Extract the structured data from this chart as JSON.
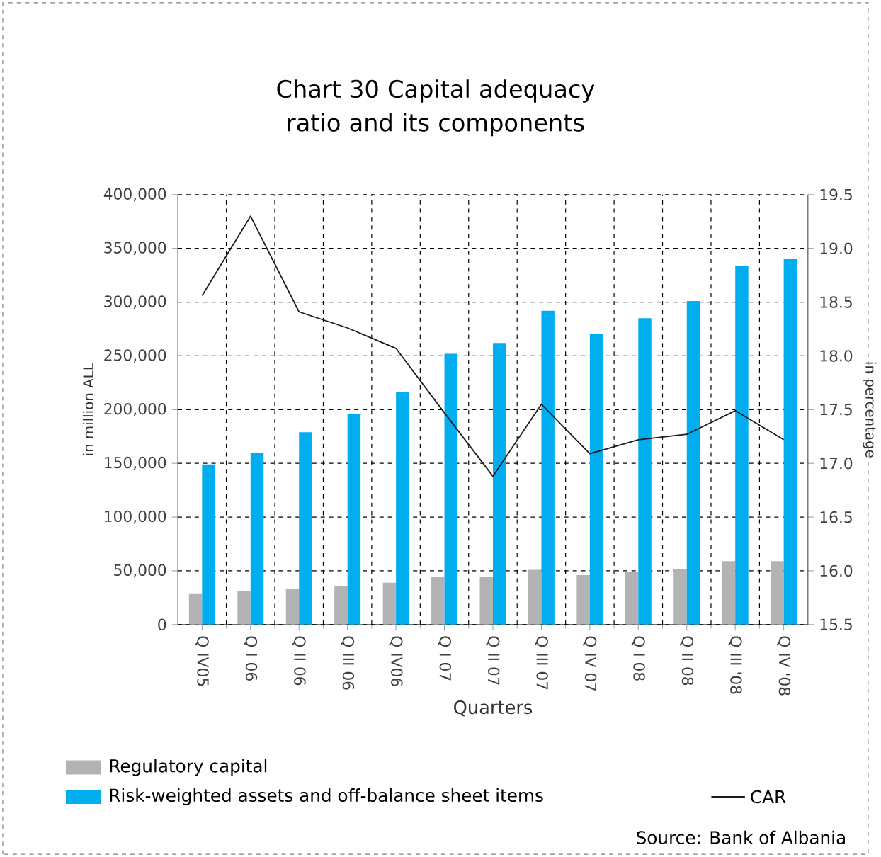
{
  "chart_data": {
    "type": "bar",
    "title": "Chart 30 Capital adequacy ratio and its components",
    "xlabel": "Quarters",
    "ylabel": "in million ALL",
    "y2label": "in percentage",
    "categories": [
      "Q IV05",
      "Q I 06",
      "Q II 06",
      "Q III 06",
      "Q IV06",
      "Q I 07",
      "Q II 07",
      "Q III 07",
      "Q IV 07",
      "Q I 08",
      "Q II 08",
      "Q III '08",
      "Q IV '08"
    ],
    "series": [
      {
        "name": "Regulatory capital",
        "color": "#b3b3b5",
        "values": [
          29000,
          31000,
          33000,
          36000,
          39000,
          44000,
          44000,
          51000,
          46000,
          49000,
          52000,
          59000,
          59000
        ]
      },
      {
        "name": "Risk-weighted assets and off-balance sheet items",
        "color": "#00aeef",
        "values": [
          149000,
          160000,
          179000,
          196000,
          216000,
          252000,
          262000,
          292000,
          270000,
          285000,
          301000,
          334000,
          340000
        ]
      },
      {
        "name": "CAR",
        "type": "line",
        "axis": "y2",
        "color": "#1a1a1a",
        "values": [
          18.56,
          19.3,
          18.41,
          18.26,
          18.07,
          17.47,
          16.88,
          17.55,
          17.09,
          17.22,
          17.27,
          17.49,
          17.22
        ]
      }
    ],
    "ylim": [
      0,
      400000
    ],
    "yticks": [
      {
        "value": 0,
        "label": "0"
      },
      {
        "value": 50000,
        "label": "50,000"
      },
      {
        "value": 100000,
        "label": "100,000"
      },
      {
        "value": 150000,
        "label": "150,000"
      },
      {
        "value": 200000,
        "label": "200,000"
      },
      {
        "value": 250000,
        "label": "250,000"
      },
      {
        "value": 300000,
        "label": "300,000"
      },
      {
        "value": 350000,
        "label": "350,000"
      },
      {
        "value": 400000,
        "label": "400,000"
      }
    ],
    "y2lim": [
      15.5,
      19.5
    ],
    "y2ticks": [
      {
        "value": 15.5,
        "label": "15.5"
      },
      {
        "value": 16,
        "label": "16.0"
      },
      {
        "value": 16.5,
        "label": "16.5"
      },
      {
        "value": 17,
        "label": "17.0"
      },
      {
        "value": 17.5,
        "label": "17.5"
      },
      {
        "value": 18,
        "label": "18.0"
      },
      {
        "value": 18.5,
        "label": "18.5"
      },
      {
        "value": 19,
        "label": "19.0"
      },
      {
        "value": 19.5,
        "label": "19.5"
      }
    ],
    "grid": true,
    "legend": "bottom",
    "marker": "none",
    "annotations": [
      "Source: Bank of Albania"
    ]
  }
}
